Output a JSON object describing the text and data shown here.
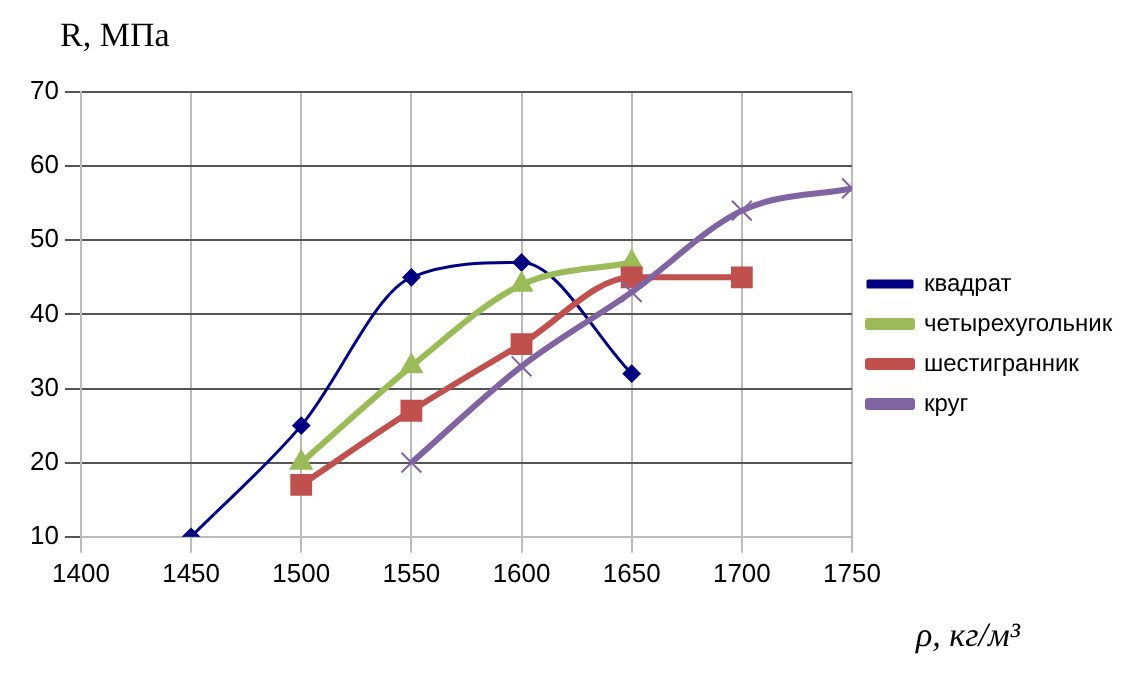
{
  "chart_data": {
    "type": "line",
    "ylabel": "R, МПа",
    "xlabel": "ρ, кг/м³",
    "xlim": [
      1400,
      1750
    ],
    "xticks": [
      1400,
      1450,
      1500,
      1550,
      1600,
      1650,
      1700,
      1750
    ],
    "ylim": [
      10,
      70
    ],
    "yticks": [
      10,
      20,
      30,
      40,
      50,
      60,
      70
    ],
    "grid": true,
    "legend": "right",
    "series": [
      {
        "name": "квадрат",
        "color": "#000080",
        "marker": "diamond",
        "x": [
          1450,
          1500,
          1550,
          1600,
          1650
        ],
        "values": [
          10,
          25,
          45,
          47,
          32
        ]
      },
      {
        "name": "четырехугольник",
        "color": "#9bbb59",
        "marker": "triangle",
        "x": [
          1500,
          1550,
          1600,
          1650
        ],
        "values": [
          20,
          33,
          44,
          47
        ]
      },
      {
        "name": "шестигранник",
        "color": "#c0504d",
        "marker": "square",
        "x": [
          1500,
          1550,
          1600,
          1650,
          1700
        ],
        "values": [
          17,
          27,
          36,
          45,
          45
        ]
      },
      {
        "name": "круг",
        "color": "#8064a2",
        "marker": "cross",
        "x": [
          1550,
          1600,
          1650,
          1700,
          1750
        ],
        "values": [
          20,
          33,
          43,
          54,
          57
        ]
      }
    ]
  }
}
